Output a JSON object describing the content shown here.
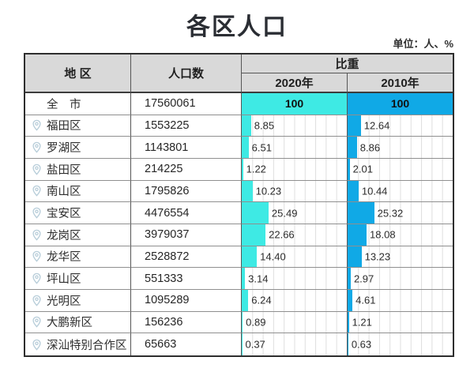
{
  "title": "各区人口",
  "unit_note": "单位：人、%",
  "colors": {
    "bar_2020": "#3eeae4",
    "bar_2010": "#10a9e6",
    "header_bg": "#d9d9d9",
    "pin_icon": "#b7cdd9"
  },
  "table": {
    "headers": {
      "district": "地 区",
      "population": "人口数",
      "proportion": "比重",
      "year_2020": "2020年",
      "year_2010": "2010年"
    },
    "rows": [
      {
        "district": "全　市",
        "population": "17560061",
        "p2020": "100",
        "p2010": "100",
        "is_total": true
      },
      {
        "district": "福田区",
        "population": "1553225",
        "p2020": "8.85",
        "p2010": "12.64"
      },
      {
        "district": "罗湖区",
        "population": "1143801",
        "p2020": "6.51",
        "p2010": "8.86"
      },
      {
        "district": "盐田区",
        "population": "214225",
        "p2020": "1.22",
        "p2010": "2.01"
      },
      {
        "district": "南山区",
        "population": "1795826",
        "p2020": "10.23",
        "p2010": "10.44"
      },
      {
        "district": "宝安区",
        "population": "4476554",
        "p2020": "25.49",
        "p2010": "25.32"
      },
      {
        "district": "龙岗区",
        "population": "3979037",
        "p2020": "22.66",
        "p2010": "18.08"
      },
      {
        "district": "龙华区",
        "population": "2528872",
        "p2020": "14.40",
        "p2010": "13.23"
      },
      {
        "district": "坪山区",
        "population": "551333",
        "p2020": "3.14",
        "p2010": "2.97"
      },
      {
        "district": "光明区",
        "population": "1095289",
        "p2020": "6.24",
        "p2010": "4.61"
      },
      {
        "district": "大鹏新区",
        "population": "156236",
        "p2020": "0.89",
        "p2010": "1.21"
      },
      {
        "district": "深汕特别合作区",
        "population": "65663",
        "p2020": "0.37",
        "p2010": "0.63"
      }
    ]
  },
  "chart_data": {
    "type": "bar",
    "title": "各区人口",
    "unit": "单位：人、%",
    "categories": [
      "全市",
      "福田区",
      "罗湖区",
      "盐田区",
      "南山区",
      "宝安区",
      "龙岗区",
      "龙华区",
      "坪山区",
      "光明区",
      "大鹏新区",
      "深汕特别合作区"
    ],
    "series": [
      {
        "name": "人口数",
        "values": [
          17560061,
          1553225,
          1143801,
          214225,
          1795826,
          4476554,
          3979037,
          2528872,
          551333,
          1095289,
          156236,
          65663
        ]
      },
      {
        "name": "比重 2020年",
        "values": [
          100,
          8.85,
          6.51,
          1.22,
          10.23,
          25.49,
          22.66,
          14.4,
          3.14,
          6.24,
          0.89,
          0.37
        ]
      },
      {
        "name": "比重 2010年",
        "values": [
          100,
          12.64,
          8.86,
          2.01,
          10.44,
          25.32,
          18.08,
          13.23,
          2.97,
          4.61,
          1.21,
          0.63
        ]
      }
    ],
    "xlim": [
      0,
      100
    ],
    "grid": true,
    "layout": "horizontal bars embedded in table rows; full-width 100 bar for city total"
  }
}
